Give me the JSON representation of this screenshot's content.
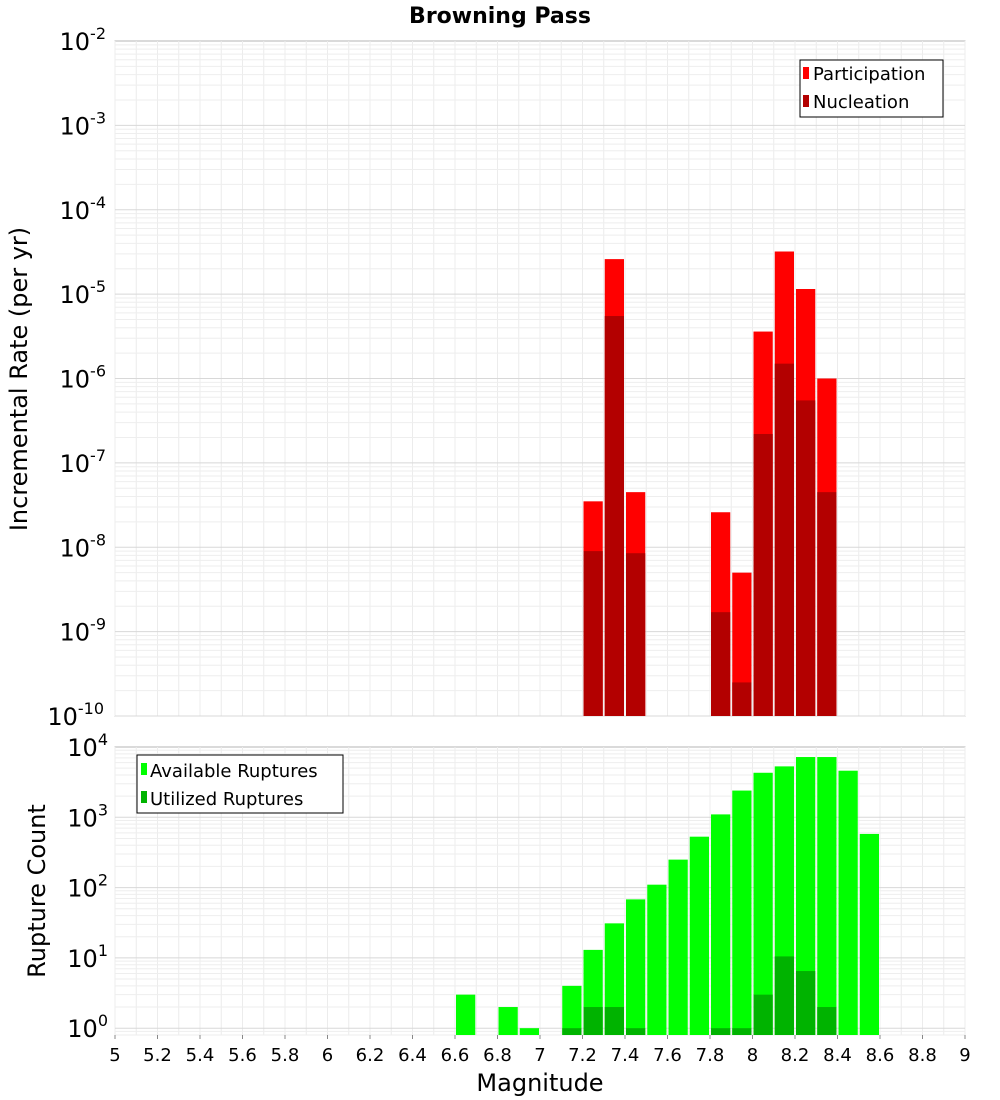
{
  "title": "Browning Pass",
  "chart_data": [
    {
      "type": "bar",
      "ylabel": "Incremental Rate (per yr)",
      "xlabel": "",
      "yscale": "log",
      "ylim": [
        1e-10,
        0.01
      ],
      "xlim": [
        5,
        9
      ],
      "legend_position": "top-right",
      "grid": true,
      "series": [
        {
          "name": "Participation",
          "color": "#ff0000",
          "x": [
            7.25,
            7.35,
            7.45,
            7.85,
            7.95,
            8.05,
            8.15,
            8.25,
            8.35
          ],
          "values": [
            3.5e-08,
            2.6e-05,
            4.5e-08,
            2.6e-08,
            5e-09,
            3.6e-06,
            3.2e-05,
            1.15e-05,
            1e-06
          ]
        },
        {
          "name": "Nucleation",
          "color": "#b30000",
          "x": [
            7.25,
            7.35,
            7.45,
            7.85,
            7.95,
            8.05,
            8.15,
            8.25,
            8.35
          ],
          "values": [
            9e-09,
            5.5e-06,
            8.5e-09,
            1.7e-09,
            2.5e-10,
            2.2e-07,
            1.5e-06,
            5.5e-07,
            4.5e-08
          ]
        }
      ]
    },
    {
      "type": "bar",
      "ylabel": "Rupture Count",
      "xlabel": "Magnitude",
      "yscale": "log",
      "ylim": [
        0.8,
        10000
      ],
      "xlim": [
        5,
        9
      ],
      "legend_position": "top-left",
      "grid": true,
      "xticks": [
        "5",
        "5.2",
        "5.4",
        "5.6",
        "5.8",
        "6",
        "6.2",
        "6.4",
        "6.6",
        "6.8",
        "7",
        "7.2",
        "7.4",
        "7.6",
        "7.8",
        "8",
        "8.2",
        "8.4",
        "8.6",
        "8.8",
        "9"
      ],
      "series": [
        {
          "name": "Available Ruptures",
          "color": "#00ff00",
          "x": [
            6.65,
            6.85,
            6.95,
            7.15,
            7.25,
            7.35,
            7.45,
            7.55,
            7.65,
            7.75,
            7.85,
            7.95,
            8.05,
            8.15,
            8.25,
            8.35,
            8.45,
            8.55
          ],
          "values": [
            3,
            2,
            1,
            4,
            13,
            31,
            68,
            110,
            250,
            530,
            1100,
            2400,
            4300,
            5300,
            7200,
            7200,
            4600,
            580
          ]
        },
        {
          "name": "Utilized Ruptures",
          "color": "#00b300",
          "x": [
            7.15,
            7.25,
            7.35,
            7.45,
            7.85,
            7.95,
            8.05,
            8.15,
            8.25,
            8.35
          ],
          "values": [
            1,
            2,
            2,
            1,
            1,
            1,
            3,
            10.5,
            6.5,
            2
          ]
        }
      ]
    }
  ]
}
